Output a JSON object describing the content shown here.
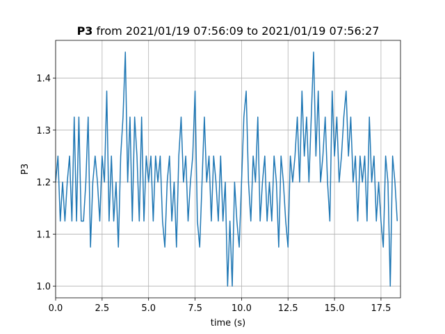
{
  "chart_data": {
    "type": "line",
    "title_name": "P3",
    "title": "from 2021/01/19 07:56:09 to 2021/01/19 07:56:27",
    "xlabel": "time (s)",
    "ylabel": "P3",
    "grid": true,
    "xlim": [
      0,
      18.55
    ],
    "ylim": [
      0.9775,
      1.4725
    ],
    "xticks": [
      {
        "value": 0,
        "label": "0.0"
      },
      2.5,
      {
        "value": 5,
        "label": "5.0"
      },
      7.5,
      {
        "value": 10,
        "label": "10.0"
      },
      12.5,
      {
        "value": 15,
        "label": "15.0"
      },
      17.5
    ],
    "yticks": [
      {
        "value": 1,
        "label": "1.0"
      },
      1.1,
      1.2,
      1.3,
      1.4
    ],
    "x": [
      0,
      0.125,
      0.25,
      0.375,
      0.5,
      0.625,
      0.75,
      0.875,
      1,
      1.125,
      1.25,
      1.375,
      1.5,
      1.625,
      1.75,
      1.875,
      2,
      2.125,
      2.25,
      2.375,
      2.5,
      2.625,
      2.75,
      2.875,
      3,
      3.125,
      3.25,
      3.375,
      3.5,
      3.625,
      3.75,
      3.875,
      4,
      4.125,
      4.25,
      4.375,
      4.5,
      4.625,
      4.75,
      4.875,
      5,
      5.125,
      5.25,
      5.375,
      5.5,
      5.625,
      5.75,
      5.875,
      6,
      6.125,
      6.25,
      6.375,
      6.5,
      6.625,
      6.75,
      6.875,
      7,
      7.125,
      7.25,
      7.375,
      7.5,
      7.625,
      7.75,
      7.875,
      8,
      8.125,
      8.25,
      8.375,
      8.5,
      8.625,
      8.75,
      8.875,
      9,
      9.125,
      9.25,
      9.375,
      9.5,
      9.625,
      9.75,
      9.875,
      10,
      10.125,
      10.25,
      10.375,
      10.5,
      10.625,
      10.75,
      10.875,
      11,
      11.125,
      11.25,
      11.375,
      11.5,
      11.625,
      11.75,
      11.875,
      12,
      12.125,
      12.25,
      12.375,
      12.5,
      12.625,
      12.75,
      12.875,
      13,
      13.125,
      13.25,
      13.375,
      13.5,
      13.625,
      13.75,
      13.875,
      14,
      14.125,
      14.25,
      14.375,
      14.5,
      14.625,
      14.75,
      14.875,
      15,
      15.125,
      15.25,
      15.375,
      15.5,
      15.625,
      15.75,
      15.875,
      16,
      16.125,
      16.25,
      16.375,
      16.5,
      16.625,
      16.75,
      16.875,
      17,
      17.125,
      17.25,
      17.375,
      17.5,
      17.625,
      17.75,
      17.875,
      18,
      18.125,
      18.25,
      18.375
    ],
    "series": [
      {
        "name": "P3",
        "color": "#1f77b4",
        "values": [
          1.2,
          1.25,
          1.125,
          1.2,
          1.125,
          1.2,
          1.25,
          1.125,
          1.325,
          1.125,
          1.325,
          1.125,
          1.125,
          1.2,
          1.325,
          1.075,
          1.2,
          1.25,
          1.2,
          1.125,
          1.25,
          1.2,
          1.375,
          1.125,
          1.25,
          1.125,
          1.2,
          1.075,
          1.25,
          1.325,
          1.45,
          1.2,
          1.325,
          1.125,
          1.325,
          1.25,
          1.125,
          1.325,
          1.125,
          1.25,
          1.2,
          1.25,
          1.125,
          1.25,
          1.2,
          1.25,
          1.125,
          1.075,
          1.2,
          1.25,
          1.125,
          1.2,
          1.075,
          1.25,
          1.325,
          1.2,
          1.25,
          1.125,
          1.2,
          1.25,
          1.375,
          1.125,
          1.075,
          1.2,
          1.325,
          1.2,
          1.25,
          1.125,
          1.25,
          1.2,
          1.125,
          1.25,
          1.125,
          1.2,
          1.0,
          1.125,
          1.0,
          1.2,
          1.125,
          1.075,
          1.2,
          1.325,
          1.375,
          1.2,
          1.125,
          1.25,
          1.2,
          1.325,
          1.125,
          1.2,
          1.25,
          1.125,
          1.2,
          1.125,
          1.25,
          1.2,
          1.075,
          1.25,
          1.2,
          1.125,
          1.075,
          1.25,
          1.2,
          1.25,
          1.325,
          1.2,
          1.375,
          1.25,
          1.325,
          1.2,
          1.325,
          1.45,
          1.25,
          1.375,
          1.2,
          1.25,
          1.325,
          1.2,
          1.125,
          1.375,
          1.25,
          1.325,
          1.2,
          1.25,
          1.325,
          1.375,
          1.25,
          1.325,
          1.2,
          1.25,
          1.125,
          1.25,
          1.2,
          1.25,
          1.125,
          1.325,
          1.2,
          1.25,
          1.125,
          1.2,
          1.125,
          1.075,
          1.25,
          1.2,
          1.0,
          1.25,
          1.2,
          1.125
        ]
      }
    ]
  }
}
